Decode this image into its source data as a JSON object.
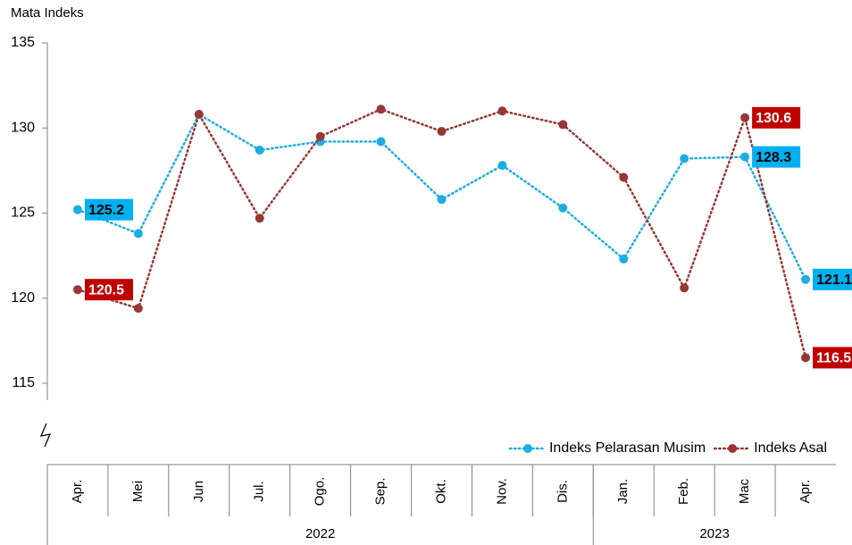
{
  "chart_data": {
    "type": "line",
    "y_label": "Mata Indeks",
    "categories": [
      "Apr.",
      "Mei",
      "Jun",
      "Jul.",
      "Ogo.",
      "Sep.",
      "Okt.",
      "Nov.",
      "Dis.",
      "Jan.",
      "Feb.",
      "Mac",
      "Apr."
    ],
    "year_groups": [
      {
        "name": "2022",
        "span": 9
      },
      {
        "name": "2023",
        "span": 4
      }
    ],
    "series": [
      {
        "name": "Indeks Pelarasan Musim",
        "color": "#1cade4",
        "label_fill": "#00b0f0",
        "label_text": "#000000",
        "values": [
          125.2,
          123.8,
          130.8,
          128.7,
          129.2,
          129.2,
          125.8,
          127.8,
          125.3,
          122.3,
          128.2,
          128.3,
          121.1
        ],
        "value_labels": [
          "125.2",
          null,
          null,
          null,
          null,
          null,
          null,
          null,
          null,
          null,
          null,
          "128.3",
          "121.1"
        ]
      },
      {
        "name": "Indeks Asal",
        "color": "#953735",
        "label_fill": "#c00000",
        "label_text": "#ffffff",
        "values": [
          120.5,
          119.4,
          130.8,
          124.7,
          129.5,
          131.1,
          129.8,
          131.0,
          130.2,
          127.1,
          120.6,
          130.6,
          116.5
        ],
        "value_labels": [
          "120.5",
          null,
          null,
          null,
          null,
          null,
          null,
          null,
          null,
          null,
          null,
          "130.6",
          "116.5"
        ]
      }
    ],
    "ylim": [
      114,
      135
    ],
    "yticks": [
      115,
      120,
      125,
      130,
      135
    ],
    "legend": "bottom-right"
  }
}
